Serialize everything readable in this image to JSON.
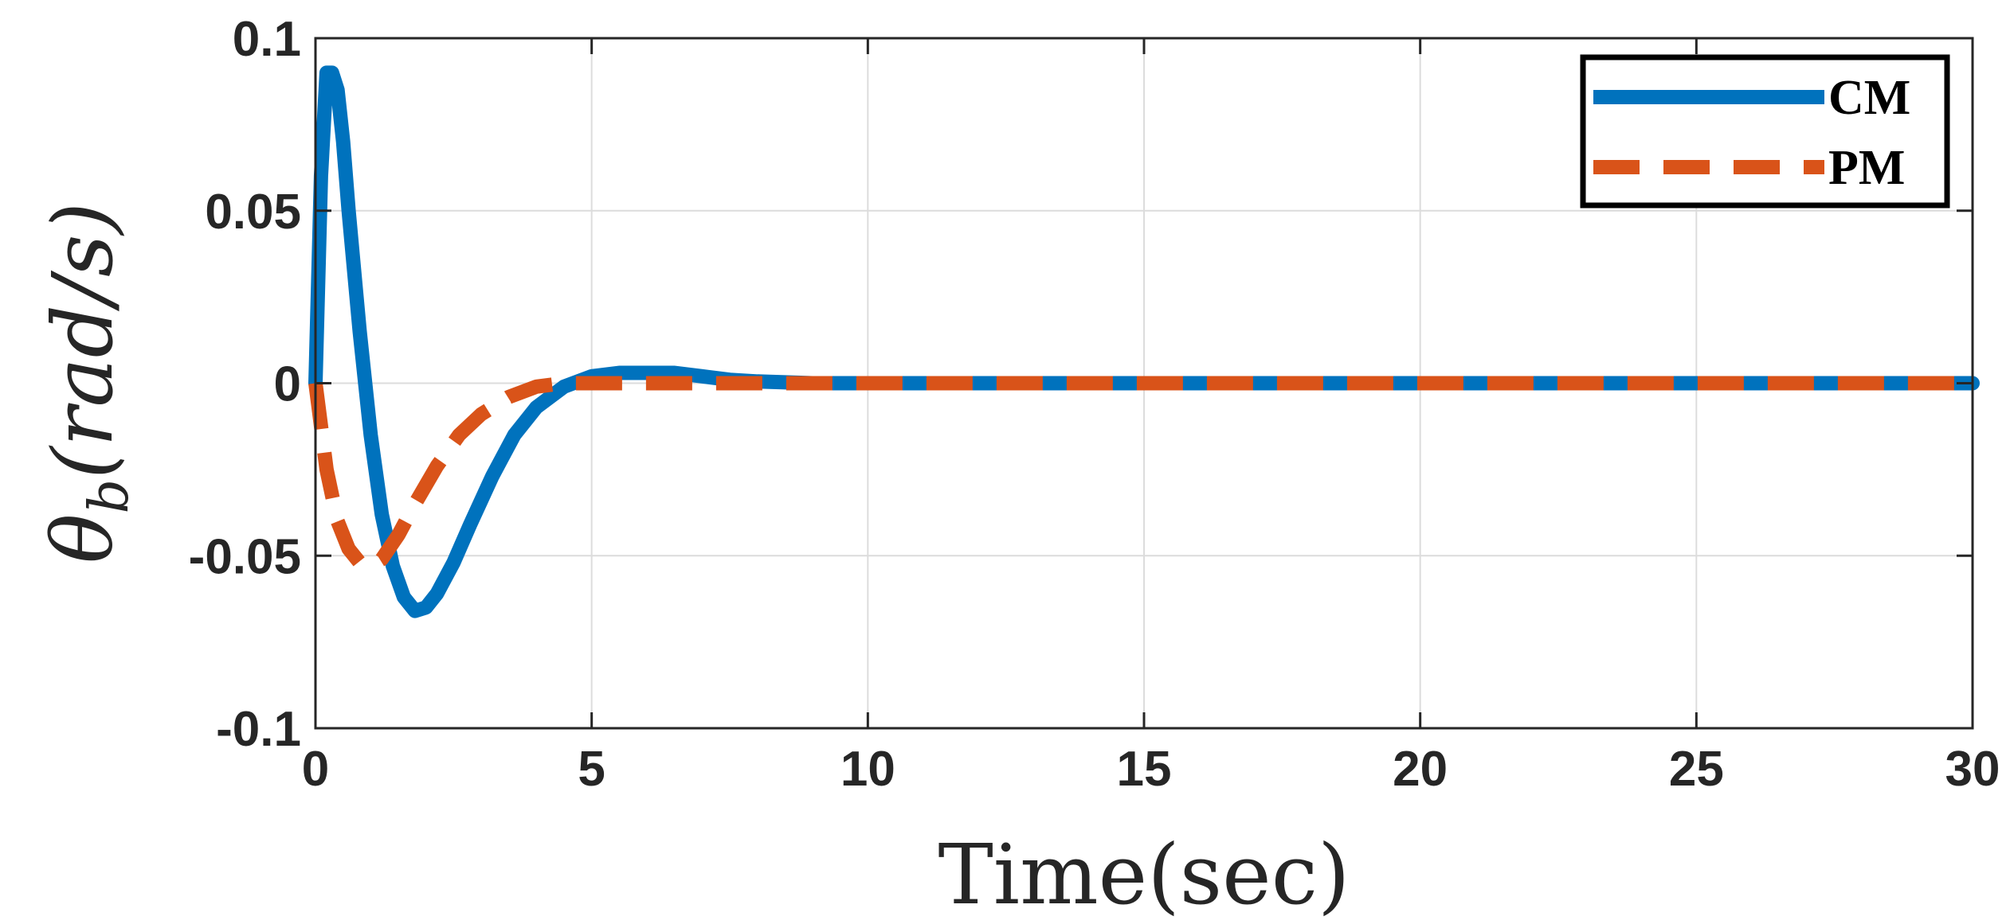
{
  "chart_data": {
    "type": "line",
    "xlabel": "Time(sec)",
    "ylabel": {
      "symbol": "θ",
      "subscript": "b",
      "units": "(rad/s)"
    },
    "xlim": [
      0,
      30
    ],
    "ylim": [
      -0.1,
      0.1
    ],
    "xticks": [
      0,
      5,
      10,
      15,
      20,
      25,
      30
    ],
    "xtick_labels": [
      "0",
      "5",
      "10",
      "15",
      "20",
      "25",
      "30"
    ],
    "yticks": [
      0.1,
      0.05,
      0,
      -0.05,
      -0.1
    ],
    "ytick_labels": [
      "0.1",
      "0.05",
      "0",
      "-0.05",
      "-0.1"
    ],
    "grid": true,
    "legend_position": "top-right",
    "series": [
      {
        "name": "CM",
        "color": "#0072BD",
        "style": "solid",
        "x": [
          0,
          0.1,
          0.2,
          0.3,
          0.4,
          0.5,
          0.6,
          0.8,
          1.0,
          1.2,
          1.4,
          1.6,
          1.8,
          2.0,
          2.2,
          2.5,
          2.8,
          3.2,
          3.6,
          4.0,
          4.5,
          5.0,
          5.5,
          6.0,
          6.5,
          7.0,
          7.5,
          8.0,
          9.0,
          10,
          15,
          20,
          25,
          30
        ],
        "y": [
          0,
          0.06,
          0.09,
          0.09,
          0.085,
          0.07,
          0.05,
          0.015,
          -0.015,
          -0.038,
          -0.053,
          -0.062,
          -0.066,
          -0.065,
          -0.061,
          -0.052,
          -0.041,
          -0.027,
          -0.015,
          -0.007,
          -0.001,
          0.002,
          0.003,
          0.003,
          0.003,
          0.002,
          0.001,
          0.0005,
          0,
          0,
          0,
          0,
          0,
          0
        ]
      },
      {
        "name": "PM",
        "color": "#D95319",
        "style": "dashed",
        "x": [
          0,
          0.2,
          0.4,
          0.6,
          0.8,
          1.0,
          1.2,
          1.5,
          1.8,
          2.2,
          2.6,
          3.0,
          3.5,
          4.0,
          4.5,
          5.0,
          6.0,
          7.0,
          8.0,
          10,
          15,
          20,
          25,
          30
        ],
        "y": [
          0,
          -0.025,
          -0.04,
          -0.048,
          -0.052,
          -0.053,
          -0.051,
          -0.044,
          -0.035,
          -0.024,
          -0.015,
          -0.009,
          -0.004,
          -0.001,
          0,
          0,
          0,
          0,
          0,
          0,
          0,
          0,
          0,
          0
        ]
      }
    ]
  }
}
